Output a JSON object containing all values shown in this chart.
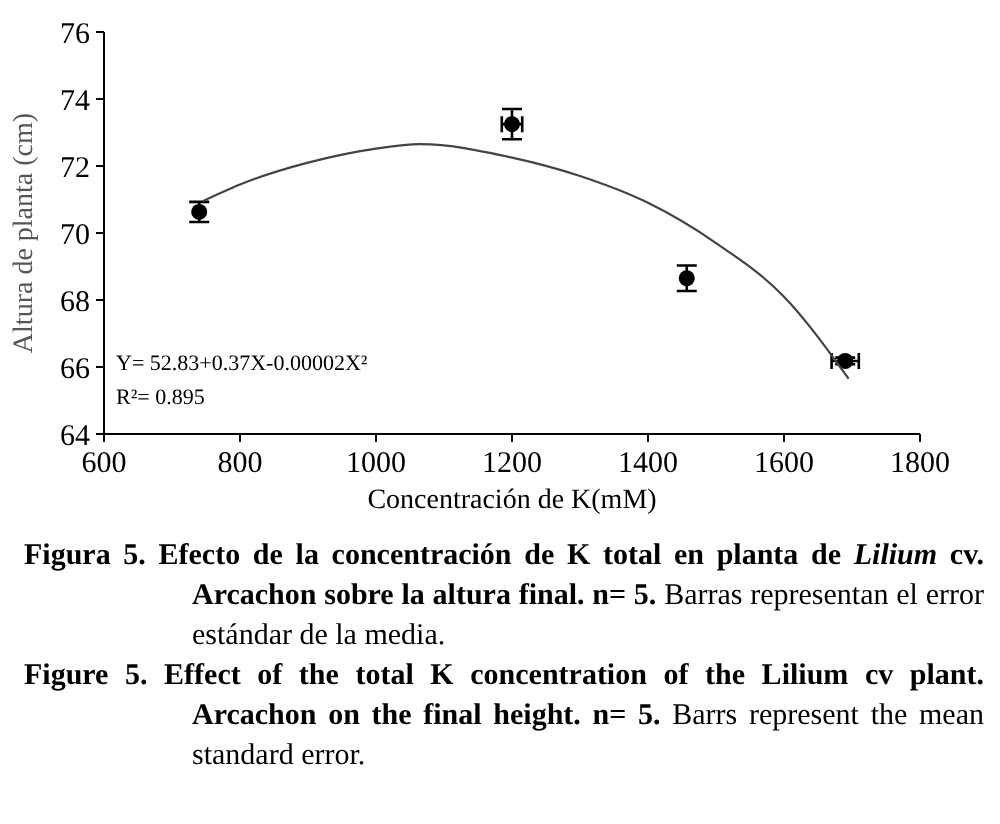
{
  "chart_data": {
    "type": "scatter",
    "xlabel": "Concentración de K(mM)",
    "ylabel": "Altura de planta (cm)",
    "xlim": [
      600,
      1800
    ],
    "xticks": [
      600,
      800,
      1000,
      1200,
      1400,
      1600,
      1800
    ],
    "ylim": [
      64,
      76
    ],
    "yticks": [
      64,
      66,
      68,
      70,
      72,
      74,
      76
    ],
    "grid": false,
    "marker": "circle",
    "series": [
      {
        "color": "#000000",
        "x": [
          740,
          1200,
          1457,
          1690
        ],
        "values": [
          70.63,
          73.25,
          68.65,
          66.18
        ],
        "errors": [
          0.3,
          0.45,
          0.38,
          0.1
        ],
        "xerrors": [
          null,
          15,
          null,
          20
        ]
      },
      {
        "type": "line",
        "color": "#444444",
        "marker": "none",
        "line_style": "solid",
        "x": [
          745,
          800,
          900,
          1000,
          1065,
          1200,
          1300,
          1400,
          1500,
          1600,
          1695
        ],
        "values": [
          70.95,
          71.45,
          72.1,
          72.52,
          72.65,
          72.25,
          71.7,
          70.9,
          69.7,
          68.1,
          65.65
        ]
      }
    ],
    "annotations": [
      "Y= 52.83+0.37X-0.00002X²",
      "R²= 0.895",
      "Figura 5. Efecto de la concentración de K total en planta de ",
      "Lilium",
      " cv. Arcachon sobre la altura final. n= 5.",
      " Barras representan el error estándar de la media.",
      "Figure 5. Effect of the total K concentration of the Lilium cv plant. Arcachon on the final height. n= 5.",
      " Barrs represent the mean standard error."
    ]
  }
}
